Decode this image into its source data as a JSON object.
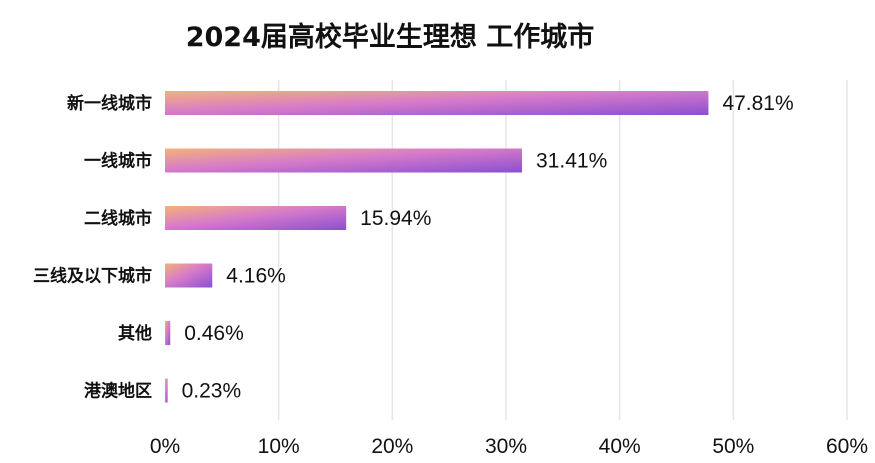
{
  "chart_data": {
    "type": "bar",
    "orientation": "horizontal",
    "title": "2024届高校毕业生理想 工作城市",
    "categories": [
      "新一线城市",
      "一线城市",
      "二线城市",
      "三线及以下城市",
      "其他",
      "港澳地区"
    ],
    "values": [
      47.81,
      31.41,
      15.94,
      4.16,
      0.46,
      0.23
    ],
    "value_labels": [
      "47.81%",
      "31.41%",
      "15.94%",
      "4.16%",
      "0.46%",
      "0.23%"
    ],
    "xlim": [
      0,
      60
    ],
    "xticks": [
      0,
      10,
      20,
      30,
      40,
      50,
      60
    ],
    "xtick_labels": [
      "0%",
      "10%",
      "20%",
      "30%",
      "40%",
      "50%",
      "60%"
    ],
    "grid": "vertical",
    "legend": "none",
    "colors": {
      "gradient_start": "#f2b27a",
      "gradient_mid": "#d77bc9",
      "gradient_end": "#8a4fd1",
      "grid": "#e6e6e6"
    }
  }
}
